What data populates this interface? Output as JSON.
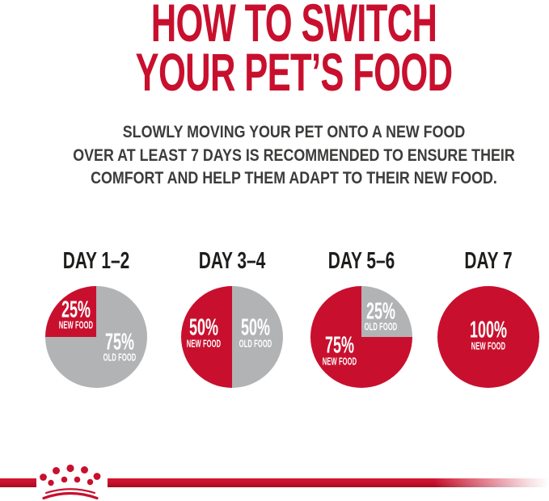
{
  "title": {
    "lines": [
      "HOW TO SWITCH",
      "YOUR PET’S FOOD"
    ],
    "color": "#C8102E"
  },
  "subtitle": {
    "lines": [
      "SLOWLY MOVING YOUR PET ONTO A NEW FOOD",
      "OVER AT LEAST 7 DAYS IS RECOMMENDED TO ENSURE THEIR",
      "COMFORT AND HELP THEM ADAPT TO THEIR NEW FOOD."
    ],
    "color": "#3C3C3B"
  },
  "chart_data": {
    "type": "pie",
    "legend": {
      "new_food_color": "#C8102E",
      "old_food_color": "#B2B3B5"
    },
    "pies": [
      {
        "title": "DAY 1–2",
        "slices": [
          {
            "label": "NEW FOOD",
            "display": "25%",
            "value": 25,
            "color": "#C8102E"
          },
          {
            "label": "OLD FOOD",
            "display": "75%",
            "value": 75,
            "color": "#B2B3B5"
          }
        ]
      },
      {
        "title": "DAY 3–4",
        "slices": [
          {
            "label": "NEW FOOD",
            "display": "50%",
            "value": 50,
            "color": "#C8102E"
          },
          {
            "label": "OLD FOOD",
            "display": "50%",
            "value": 50,
            "color": "#B2B3B5"
          }
        ]
      },
      {
        "title": "DAY 5–6",
        "slices": [
          {
            "label": "NEW FOOD",
            "display": "75%",
            "value": 75,
            "color": "#C8102E"
          },
          {
            "label": "OLD FOOD",
            "display": "25%",
            "value": 25,
            "color": "#B2B3B5"
          }
        ]
      },
      {
        "title": "DAY 7",
        "slices": [
          {
            "label": "NEW FOOD",
            "display": "100%",
            "value": 100,
            "color": "#C8102E"
          }
        ]
      }
    ]
  },
  "footer": {
    "logo": "royal-canin-crown",
    "bar_color": "#C8102E"
  }
}
